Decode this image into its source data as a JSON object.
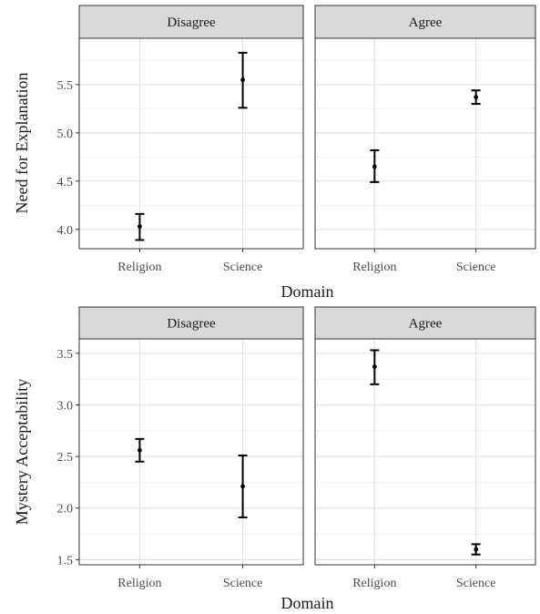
{
  "chart_data": [
    {
      "type": "errorbar",
      "ylabel": "Need for Explanation",
      "xlabel": "Domain",
      "categories": [
        "Religion",
        "Science"
      ],
      "ylim": [
        3.8,
        5.98
      ],
      "yticks": [
        4.0,
        4.5,
        5.0,
        5.5
      ],
      "grid": true,
      "panels": [
        {
          "label": "Disagree",
          "points": [
            {
              "x": "Religion",
              "y": 4.03,
              "low": 3.89,
              "high": 4.16
            },
            {
              "x": "Science",
              "y": 5.55,
              "low": 5.26,
              "high": 5.83
            }
          ]
        },
        {
          "label": "Agree",
          "points": [
            {
              "x": "Religion",
              "y": 4.65,
              "low": 4.49,
              "high": 4.82
            },
            {
              "x": "Science",
              "y": 5.37,
              "low": 5.3,
              "high": 5.44
            }
          ]
        }
      ]
    },
    {
      "type": "errorbar",
      "ylabel": "Mystery Acceptability",
      "xlabel": "Domain",
      "categories": [
        "Religion",
        "Science"
      ],
      "ylim": [
        1.45,
        3.64
      ],
      "yticks": [
        1.5,
        2.0,
        2.5,
        3.0,
        3.5
      ],
      "grid": true,
      "panels": [
        {
          "label": "Disagree",
          "points": [
            {
              "x": "Religion",
              "y": 2.56,
              "low": 2.45,
              "high": 2.67
            },
            {
              "x": "Science",
              "y": 2.21,
              "low": 1.91,
              "high": 2.51
            }
          ]
        },
        {
          "label": "Agree",
          "points": [
            {
              "x": "Religion",
              "y": 3.37,
              "low": 3.2,
              "high": 3.53
            },
            {
              "x": "Science",
              "y": 1.6,
              "low": 1.55,
              "high": 1.65
            }
          ]
        }
      ]
    }
  ]
}
